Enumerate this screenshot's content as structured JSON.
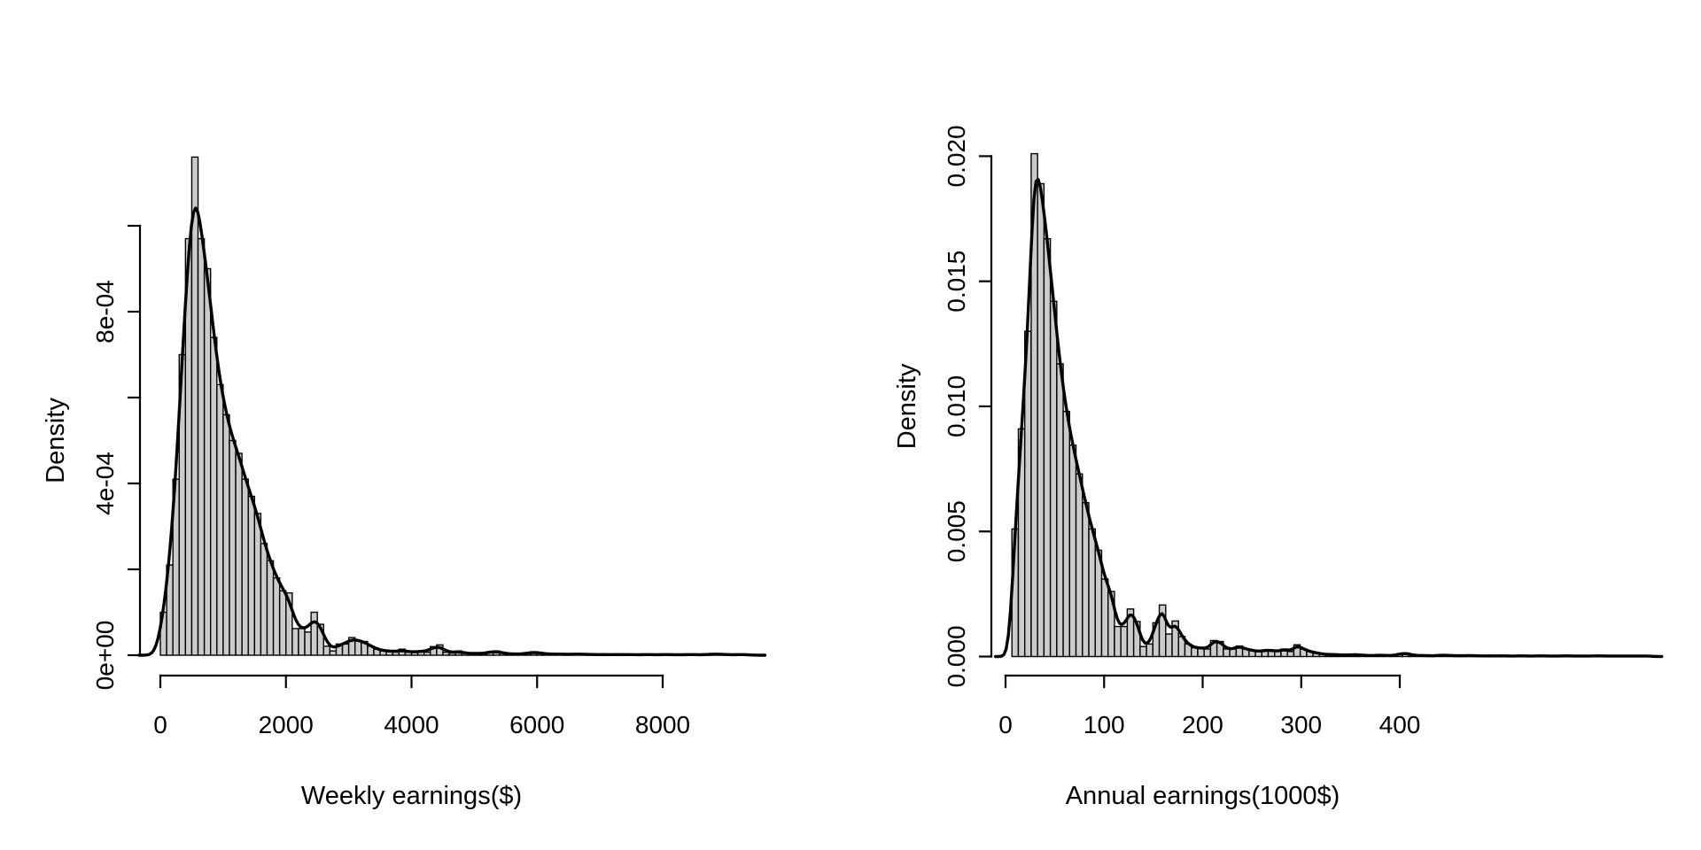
{
  "figure": {
    "background": "#ffffff",
    "ink_color": "#000000",
    "bar_fill_color": "#cbcbcb",
    "bar_stroke_color": "#000000"
  },
  "chart_data": [
    {
      "type": "histogram-with-density-curve",
      "id": "weekly",
      "xlabel": "Weekly earnings($)",
      "ylabel": "Density",
      "x_ticks": [
        0,
        2000,
        4000,
        6000,
        8000
      ],
      "x_tick_labels": [
        "0",
        "2000",
        "4000",
        "6000",
        "8000"
      ],
      "y_ticks": [
        0,
        0.0002,
        0.0004,
        0.0006,
        0.0008,
        0.001
      ],
      "y_tick_labels": [
        "0e+00",
        "",
        "4e-04",
        "",
        "8e-04",
        ""
      ],
      "xlim": [
        0,
        8000
      ],
      "ylim": [
        0,
        0.001
      ],
      "grid": false,
      "legend": "none",
      "bin_start": 0,
      "bin_width": 100,
      "height_unit": 0.0001,
      "bin_heights": [
        1.0,
        2.1,
        4.1,
        7.0,
        9.7,
        11.6,
        9.7,
        9.0,
        7.4,
        6.3,
        5.6,
        5.0,
        4.7,
        4.1,
        3.7,
        3.3,
        2.6,
        2.2,
        1.8,
        1.5,
        1.45,
        0.62,
        0.62,
        0.54,
        1.0,
        0.72,
        0.21,
        0.1,
        0.26,
        0.26,
        0.41,
        0.34,
        0.32,
        0.21,
        0.14,
        0.1,
        0.1,
        0.07,
        0.14,
        0.07,
        0.07,
        0.1,
        0.07,
        0.2,
        0.24,
        0.07,
        0.05,
        0.1,
        0.05,
        0.03,
        0.05,
        0.03,
        0.08,
        0.1,
        0.05,
        0.03,
        0.03,
        0.02,
        0.05,
        0.08,
        0.05,
        0.03,
        0.02,
        0.03,
        0.02,
        0.02,
        0.03,
        0.02,
        0.02,
        0.01,
        0.02,
        0.01,
        0.02,
        0.01,
        0.02,
        0.01,
        0.01,
        0.02,
        0.01,
        0.01,
        0.02,
        0.01,
        0.01,
        0.01,
        0.02,
        0.01,
        0.01,
        0.02,
        0.03,
        0.02,
        0.01,
        0.01,
        0.02,
        0.01
      ],
      "density_curve": {
        "bandwidth": 90,
        "peak_x": 600,
        "peak_density": 0.00104
      }
    },
    {
      "type": "histogram-with-density-curve",
      "id": "annual",
      "xlabel": "Annual earnings(1000$)",
      "ylabel": "Density",
      "x_ticks": [
        0,
        100,
        200,
        300,
        400
      ],
      "x_tick_labels": [
        "0",
        "100",
        "200",
        "300",
        "400"
      ],
      "y_ticks": [
        0,
        0.005,
        0.01,
        0.015,
        0.02
      ],
      "y_tick_labels": [
        "0.000",
        "0.005",
        "0.010",
        "0.015",
        "0.020"
      ],
      "xlim": [
        0,
        400
      ],
      "ylim": [
        0,
        0.02
      ],
      "grid": false,
      "legend": "none",
      "bin_start": 6.5,
      "bin_width": 6.5,
      "height_unit": 0.001,
      "bin_heights": [
        5.1,
        9.1,
        13.0,
        20.1,
        18.9,
        16.7,
        14.2,
        11.7,
        9.8,
        8.45,
        7.3,
        6.15,
        5.1,
        4.25,
        3.1,
        2.6,
        1.2,
        1.2,
        1.9,
        1.4,
        0.4,
        0.5,
        1.35,
        2.06,
        0.9,
        1.42,
        0.8,
        0.5,
        0.35,
        0.35,
        0.3,
        0.64,
        0.6,
        0.3,
        0.3,
        0.42,
        0.3,
        0.25,
        0.2,
        0.25,
        0.25,
        0.2,
        0.3,
        0.2,
        0.47,
        0.3,
        0.2,
        0.15,
        0.1,
        0.08,
        0.08,
        0.06,
        0.06,
        0.08,
        0.06,
        0.04,
        0.04,
        0.06,
        0.04,
        0.04,
        0.1,
        0.14,
        0.06,
        0.04,
        0.04,
        0.03,
        0.04,
        0.06,
        0.04,
        0.03,
        0.03,
        0.04,
        0.03,
        0.02,
        0.03,
        0.02,
        0.03,
        0.02,
        0.02,
        0.03,
        0.02,
        0.02,
        0.03,
        0.02,
        0.02,
        0.02,
        0.03,
        0.02,
        0.02,
        0.02,
        0.02,
        0.03,
        0.02,
        0.02,
        0.02,
        0.02,
        0.02,
        0.02,
        0.02,
        0.02
      ],
      "density_curve": {
        "bandwidth": 4.2,
        "peak_x": 30,
        "peak_density": 0.0195
      }
    }
  ]
}
